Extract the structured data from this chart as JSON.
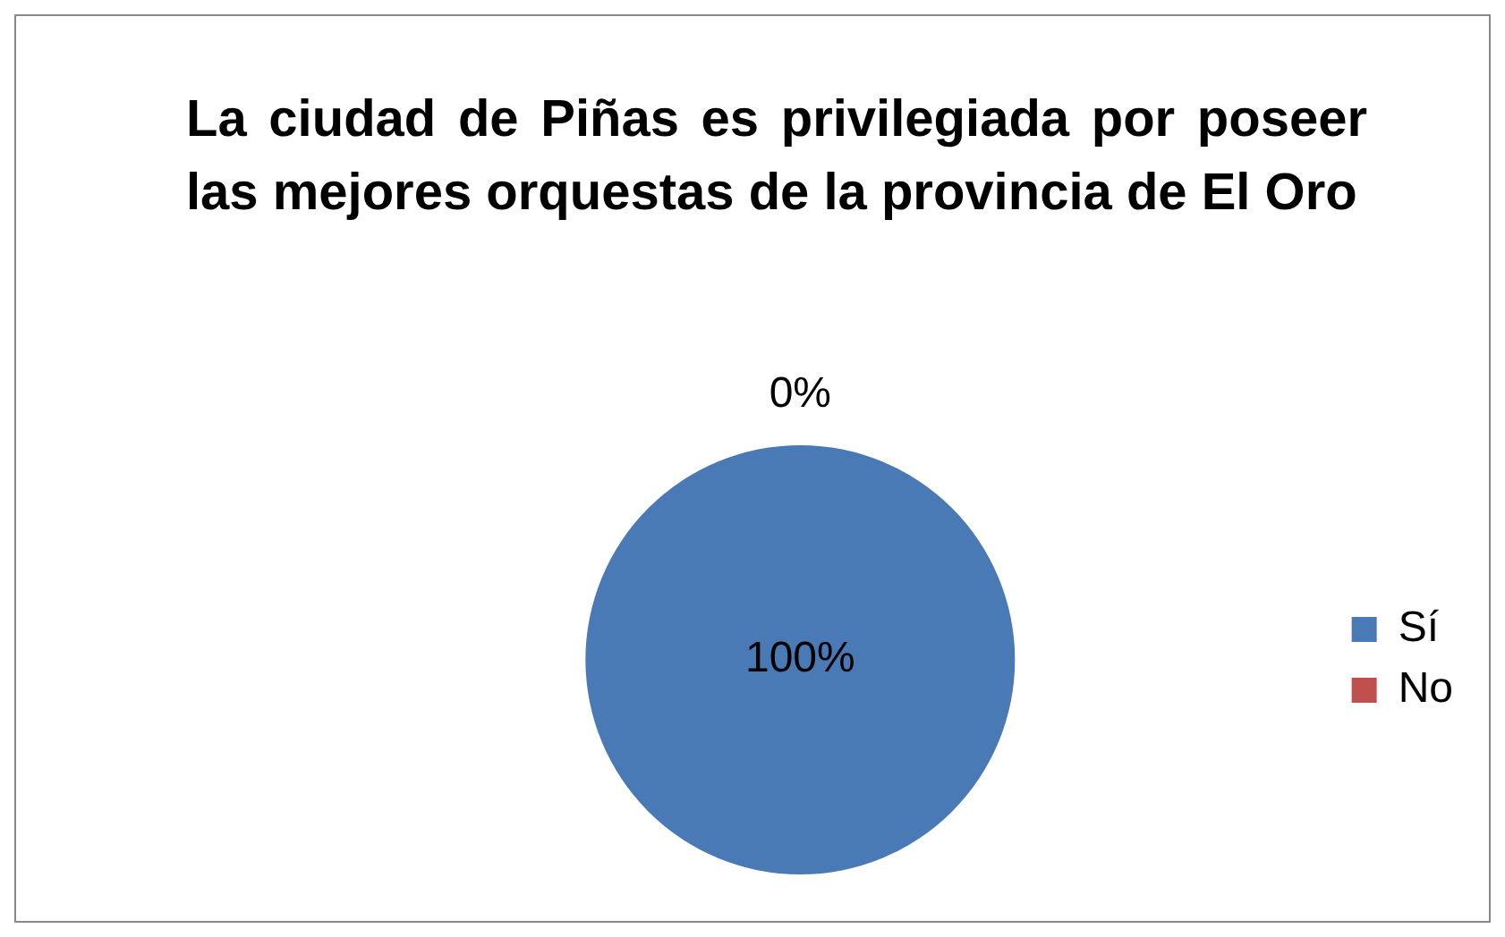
{
  "chart_data": {
    "type": "pie",
    "title": "La ciudad de Piñas es privilegiada por poseer las mejores orquestas de la provincia  de El Oro",
    "categories": [
      "Sí",
      "No"
    ],
    "values": [
      100,
      0
    ],
    "colors": [
      "#4a7ab5",
      "#c0504d"
    ],
    "value_labels": [
      "100%",
      "0%"
    ],
    "legend": "right"
  }
}
